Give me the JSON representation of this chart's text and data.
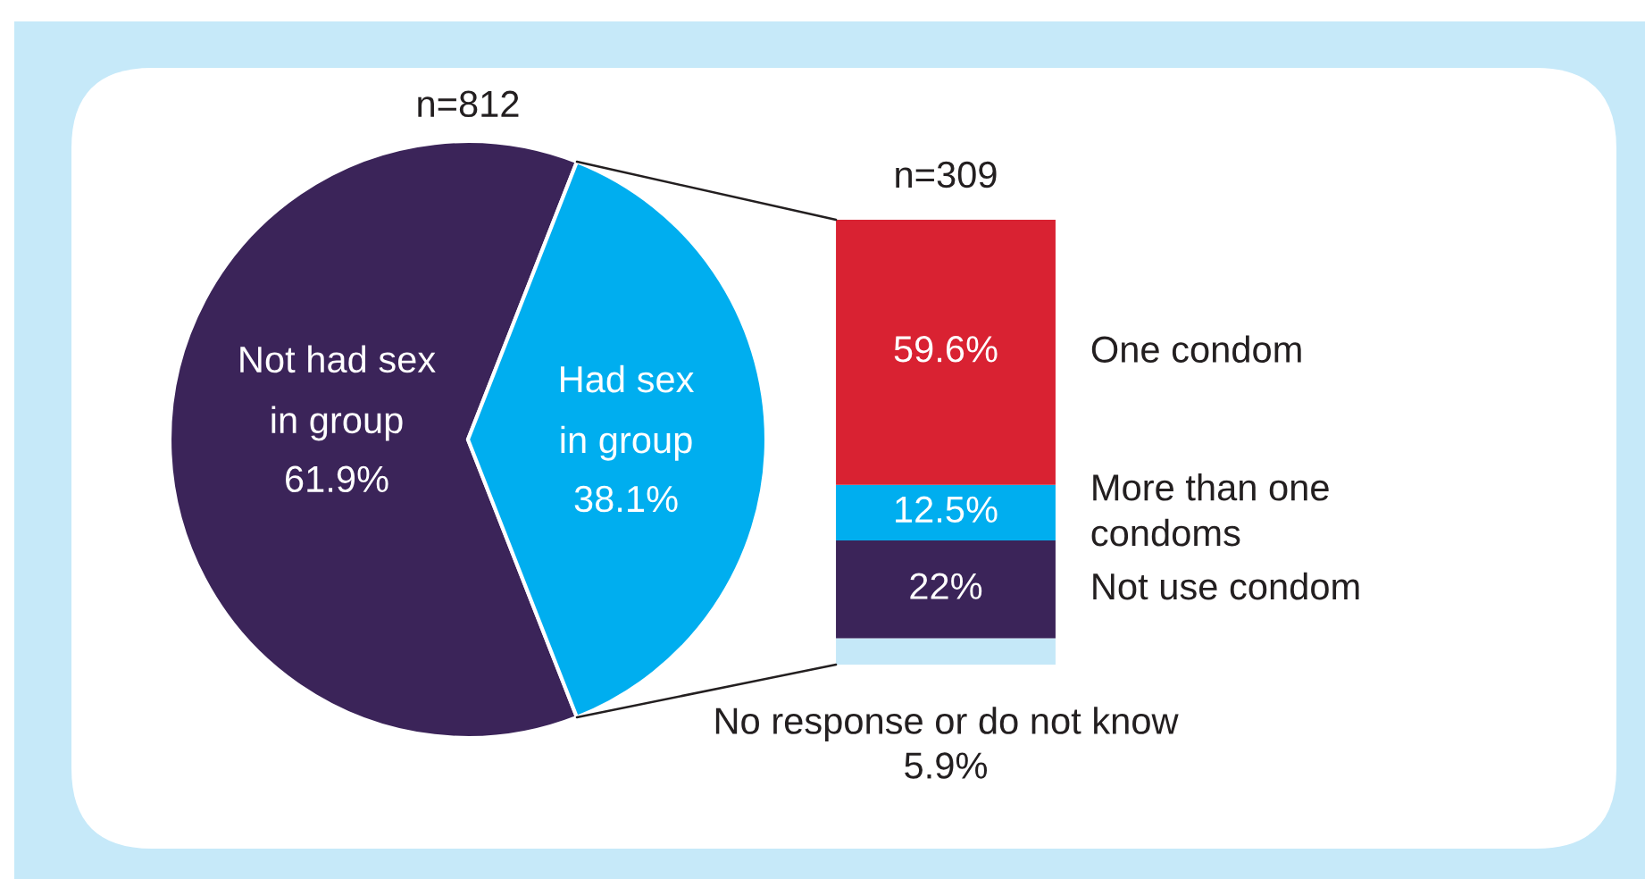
{
  "chart_data": [
    {
      "type": "pie",
      "title": "n=812",
      "categories": [
        "Not had sex in group",
        "Had sex in group"
      ],
      "values": [
        61.9,
        38.1
      ],
      "value_labels": [
        "61.9%",
        "38.1%"
      ],
      "colors": [
        "#3b2459",
        "#00aeef"
      ]
    },
    {
      "type": "bar",
      "stacked": true,
      "title": "n=309",
      "categories": [
        null
      ],
      "tick_labels": false,
      "series": [
        {
          "name": "No response or do not know",
          "color": "#c5e8f8",
          "values": [
            5.9
          ],
          "value_labels": [
            "5.9%"
          ]
        },
        {
          "name": "Not use condom",
          "color": "#3b2459",
          "values": [
            22
          ],
          "value_labels": [
            "22%"
          ]
        },
        {
          "name": "More than one condoms",
          "color": "#00aeef",
          "values": [
            12.5
          ],
          "value_labels": [
            "12.5%"
          ]
        },
        {
          "name": "One condom",
          "color": "#d92232",
          "values": [
            59.6
          ],
          "value_labels": [
            "59.6%"
          ]
        }
      ]
    }
  ]
}
